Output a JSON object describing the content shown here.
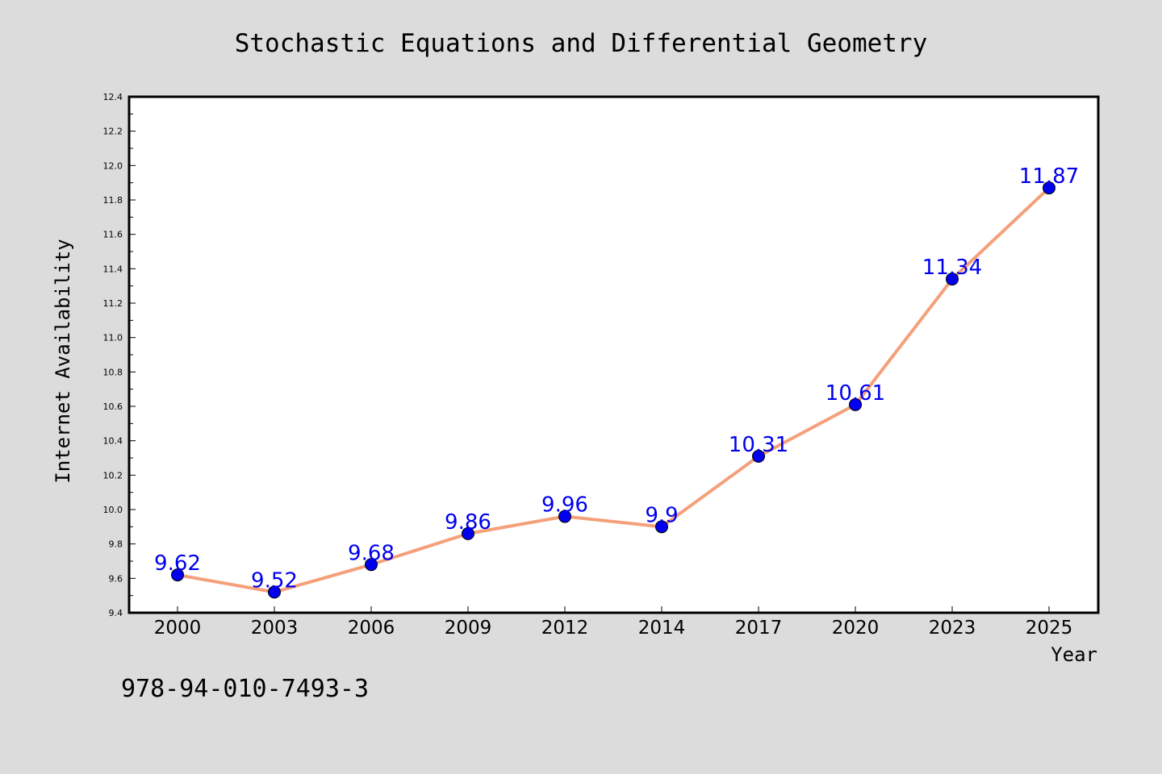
{
  "title": "Stochastic Equations and Differential Geometry",
  "footer_text": "978-94-010-7493-3",
  "colors": {
    "background": "#dcdcdc",
    "plot_background": "#ffffff",
    "line": "#f4a07a",
    "marker": "#0000ee",
    "data_label": "#0000ee"
  },
  "chart_data": {
    "type": "line",
    "title": "Stochastic Equations and Differential Geometry",
    "xlabel": "Year",
    "ylabel": "Internet Availability",
    "categories": [
      "2000",
      "2003",
      "2006",
      "2009",
      "2012",
      "2014",
      "2017",
      "2020",
      "2023",
      "2025"
    ],
    "values": [
      9.62,
      9.52,
      9.68,
      9.86,
      9.96,
      9.9,
      10.31,
      10.61,
      11.34,
      11.87
    ],
    "data_labels": [
      "9.62",
      "9.52",
      "9.68",
      "9.86",
      "9.96",
      "9.9",
      "10.31",
      "10.61",
      "11.34",
      "11.87"
    ],
    "ylim": [
      9.4,
      12.4
    ],
    "yticks": [
      "9.4",
      "9.6",
      "9.8",
      "10.0",
      "10.2",
      "10.4",
      "10.6",
      "10.8",
      "11.0",
      "11.2",
      "11.4",
      "11.6",
      "11.8",
      "12.0",
      "12.2",
      "12.4"
    ],
    "grid": false,
    "legend": "none"
  }
}
